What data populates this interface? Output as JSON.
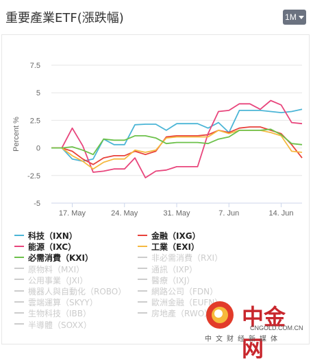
{
  "header": {
    "title": "重要產業ETF(漲跌幅)",
    "range_button": "1M"
  },
  "chart_data": {
    "type": "line",
    "ylabel": "Percent %",
    "ylim": [
      -5,
      7.5
    ],
    "yticks": [
      -5,
      -2.5,
      0,
      2.5,
      5,
      7.5
    ],
    "ytick_labels": [
      "-5",
      "-2.5",
      "0",
      "2.5",
      "5",
      "7.5"
    ],
    "xticks": [
      2,
      7,
      12,
      17,
      22
    ],
    "xtick_labels": [
      "17. May",
      "24. May",
      "31. May",
      "7. Jun",
      "14. Jun"
    ],
    "x_range": [
      0,
      24
    ],
    "grid": "horizontal",
    "series": [
      {
        "name": "科技（IXN）",
        "color": "#4bb5d6",
        "x": [
          0,
          1,
          2,
          3,
          4,
          5,
          6,
          7,
          8,
          9,
          10,
          11,
          12,
          13,
          14,
          15,
          16,
          17,
          18,
          19,
          20,
          21,
          22,
          23,
          24
        ],
        "values": [
          0,
          0,
          -1,
          -1.2,
          -1,
          0.8,
          0.3,
          0.3,
          2.1,
          2.15,
          2.15,
          1.6,
          2.2,
          2.2,
          2.2,
          1.8,
          2.3,
          1.4,
          3.4,
          3.4,
          3.4,
          3.3,
          3.2,
          3.3,
          3.5
        ]
      },
      {
        "name": "金融（IXG）",
        "color": "#e8413a",
        "x": [
          0,
          1,
          2,
          3,
          4,
          5,
          6,
          7,
          8,
          9,
          10,
          11,
          12,
          13,
          14,
          15,
          16,
          17,
          18,
          19,
          20,
          21,
          22,
          23,
          24
        ],
        "values": [
          0,
          0,
          -0.3,
          -1,
          -1.5,
          -0.9,
          -0.7,
          -0.7,
          -0.3,
          -0.6,
          -0.3,
          1,
          1.1,
          1.1,
          1.1,
          1.2,
          1.6,
          1.4,
          1.8,
          1.9,
          1.9,
          1.6,
          1.3,
          0.3,
          -0.9
        ]
      },
      {
        "name": "能源（IXC）",
        "color": "#e8457c",
        "x": [
          0,
          1,
          2,
          3,
          4,
          5,
          6,
          7,
          8,
          9,
          10,
          11,
          12,
          13,
          14,
          15,
          16,
          17,
          18,
          19,
          20,
          21,
          22,
          23,
          24
        ],
        "values": [
          0,
          0,
          1.8,
          0.2,
          -2.2,
          -2.1,
          -1.9,
          -1.9,
          -0.9,
          -2.7,
          -2.1,
          -2,
          -1.7,
          -1.7,
          -1.7,
          1.3,
          3.3,
          3.4,
          4,
          4,
          3.5,
          4.3,
          3.9,
          2.3,
          2.2
        ]
      },
      {
        "name": "工業（EXI）",
        "color": "#f5b940",
        "x": [
          0,
          1,
          2,
          3,
          4,
          5,
          6,
          7,
          8,
          9,
          10,
          11,
          12,
          13,
          14,
          15,
          16,
          17,
          18,
          19,
          20,
          21,
          22,
          23,
          24
        ],
        "values": [
          0,
          0,
          -0.7,
          -1.2,
          -1.9,
          -1.3,
          -1,
          -1,
          -0.2,
          -0.4,
          -0.2,
          0.9,
          1,
          1,
          1,
          1,
          1.6,
          1.3,
          1.6,
          1.6,
          1.6,
          1.4,
          1.1,
          -0.3,
          -0.4
        ]
      },
      {
        "name": "必需消費（KXI）",
        "color": "#6cc14a",
        "x": [
          0,
          1,
          2,
          3,
          4,
          5,
          6,
          7,
          8,
          9,
          10,
          11,
          12,
          13,
          14,
          15,
          16,
          17,
          18,
          19,
          20,
          21,
          22,
          23,
          24
        ],
        "values": [
          0,
          0,
          0.1,
          -0.2,
          -0.6,
          0.8,
          0.7,
          0.7,
          1.1,
          1.1,
          0.9,
          0.4,
          0.5,
          0.5,
          0.5,
          0.4,
          0.8,
          1,
          1.6,
          1.6,
          1.6,
          1.7,
          1.2,
          0.4,
          0.3
        ]
      }
    ],
    "legend": [
      {
        "label": "科技（IXN）",
        "active": true,
        "color": "#4bb5d6"
      },
      {
        "label": "金融（IXG）",
        "active": true,
        "color": "#e8413a"
      },
      {
        "label": "能源（IXC）",
        "active": true,
        "color": "#e8457c"
      },
      {
        "label": "工業（EXI）",
        "active": true,
        "color": "#f5b940"
      },
      {
        "label": "必需消費（KXI）",
        "active": true,
        "color": "#6cc14a"
      },
      {
        "label": "非必需消費（RXI）",
        "active": false
      },
      {
        "label": "原物料（MXI）",
        "active": false
      },
      {
        "label": "通訊（IXP）",
        "active": false
      },
      {
        "label": "公用事業（JXI）",
        "active": false
      },
      {
        "label": "醫療（IXJ）",
        "active": false
      },
      {
        "label": "機器人與自動化（ROBO）",
        "active": false
      },
      {
        "label": "網路公司（FDN）",
        "active": false
      },
      {
        "label": "雲端運算（SKYY）",
        "active": false
      },
      {
        "label": "歐洲金融（EUFN）",
        "active": false
      },
      {
        "label": "生物科技（IBB）",
        "active": false
      },
      {
        "label": "房地產（RWO）",
        "active": false
      },
      {
        "label": "半導體（SOXX）",
        "active": false
      }
    ]
  },
  "watermark": {
    "logo_text": "中金网",
    "domain": "CNGOLD.COM.CN",
    "subtitle": "中文财经新媒体"
  }
}
